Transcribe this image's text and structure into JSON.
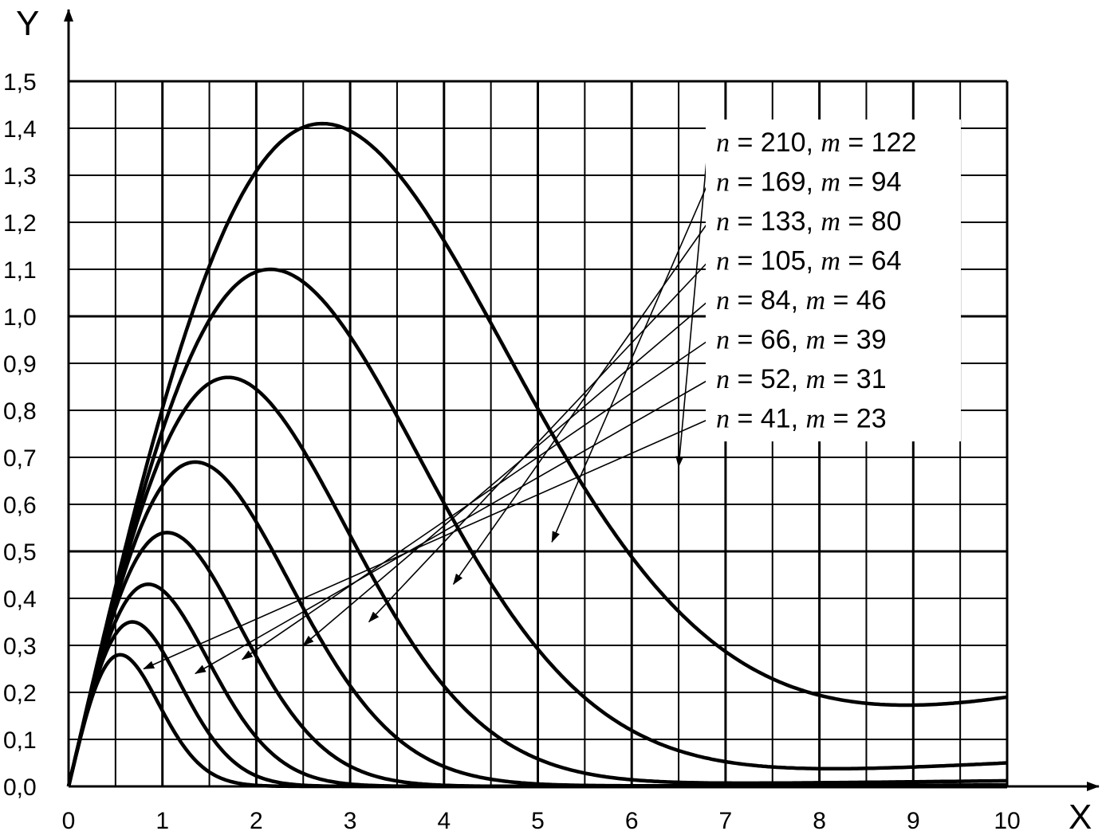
{
  "chart_data": {
    "type": "line",
    "title": "",
    "xlabel": "X",
    "ylabel": "Y",
    "xlim": [
      0,
      10
    ],
    "ylim": [
      0,
      1.5
    ],
    "x_ticks": [
      0,
      1,
      2,
      3,
      4,
      5,
      6,
      7,
      8,
      9,
      10
    ],
    "y_ticks": [
      0,
      0.1,
      0.2,
      0.3,
      0.4,
      0.5,
      0.6,
      0.7,
      0.8,
      0.9,
      1.0,
      1.1,
      1.2,
      1.3,
      1.4,
      1.5
    ],
    "x_tick_labels": [
      "0",
      "1",
      "2",
      "3",
      "4",
      "5",
      "6",
      "7",
      "8",
      "9",
      "10"
    ],
    "y_tick_labels": [
      "0,0",
      "0,1",
      "0,2",
      "0,3",
      "0,4",
      "0,5",
      "0,6",
      "0,7",
      "0,8",
      "0,9",
      "1,0",
      "1,1",
      "1,2",
      "1,3",
      "1,4",
      "1,5"
    ],
    "grid": true,
    "legend_placement": "top-right",
    "series_color": "#000000",
    "series": [
      {
        "label_n": "210",
        "label_m": "122",
        "peak_x": 2.7,
        "peak_y": 1.41,
        "end_y": 0.19
      },
      {
        "label_n": "169",
        "label_m": "94",
        "peak_x": 2.15,
        "peak_y": 1.1,
        "end_y": 0.05
      },
      {
        "label_n": "133",
        "label_m": "80",
        "peak_x": 1.7,
        "peak_y": 0.87,
        "end_y": 0.012
      },
      {
        "label_n": "105",
        "label_m": "64",
        "peak_x": 1.35,
        "peak_y": 0.69,
        "end_y": 0.003
      },
      {
        "label_n": "84",
        "label_m": "46",
        "peak_x": 1.05,
        "peak_y": 0.54,
        "end_y": 0.0
      },
      {
        "label_n": "66",
        "label_m": "39",
        "peak_x": 0.85,
        "peak_y": 0.43,
        "end_y": 0.0
      },
      {
        "label_n": "52",
        "label_m": "31",
        "peak_x": 0.68,
        "peak_y": 0.35,
        "end_y": 0.0
      },
      {
        "label_n": "41",
        "label_m": "23",
        "peak_x": 0.55,
        "peak_y": 0.28,
        "end_y": 0.0
      }
    ],
    "legend_symbols": {
      "n": "n",
      "m": "m",
      "eq": "=",
      "sep": ","
    },
    "arrow_targets": [
      {
        "x": 6.5,
        "y": 0.68
      },
      {
        "x": 5.15,
        "y": 0.52
      },
      {
        "x": 4.1,
        "y": 0.43
      },
      {
        "x": 3.2,
        "y": 0.35
      },
      {
        "x": 2.5,
        "y": 0.3
      },
      {
        "x": 1.85,
        "y": 0.27
      },
      {
        "x": 1.35,
        "y": 0.24
      },
      {
        "x": 0.8,
        "y": 0.25
      }
    ]
  }
}
